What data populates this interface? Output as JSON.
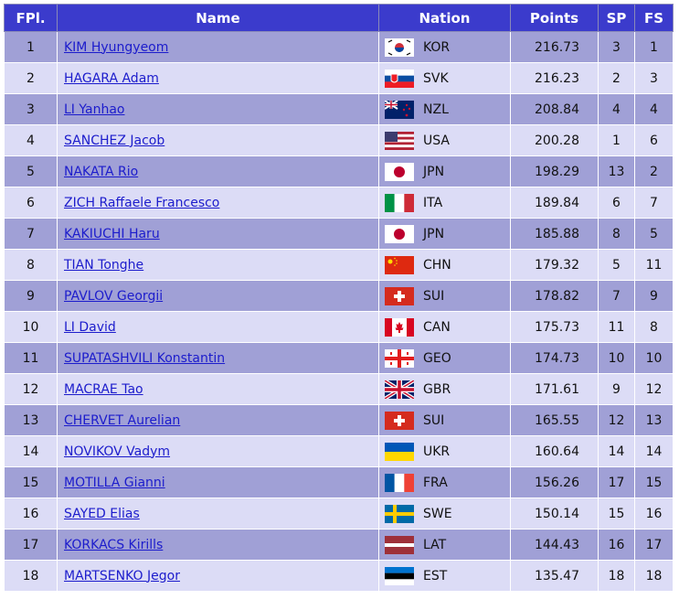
{
  "table": {
    "header": [
      "FPl.",
      "Name",
      "Nation",
      "Points",
      "SP",
      "FS"
    ],
    "rows": [
      [
        1,
        "KIM Hyungyeom",
        "KOR",
        216.73,
        3,
        1
      ],
      [
        2,
        "HAGARA Adam",
        "SVK",
        216.23,
        2,
        3
      ],
      [
        3,
        "LI Yanhao",
        "NZL",
        208.84,
        4,
        4
      ],
      [
        4,
        "SANCHEZ Jacob",
        "USA",
        200.28,
        1,
        6
      ],
      [
        5,
        "NAKATA Rio",
        "JPN",
        198.29,
        13,
        2
      ],
      [
        6,
        "ZICH Raffaele Francesco",
        "ITA",
        189.84,
        6,
        7
      ],
      [
        7,
        "KAKIUCHI Haru",
        "JPN",
        185.88,
        8,
        5
      ],
      [
        8,
        "TIAN Tonghe",
        "CHN",
        179.32,
        5,
        11
      ],
      [
        9,
        "PAVLOV Georgii",
        "SUI",
        178.82,
        7,
        9
      ],
      [
        10,
        "LI David",
        "CAN",
        175.73,
        11,
        8
      ],
      [
        11,
        "SUPATASHVILI Konstantin",
        "GEO",
        174.73,
        10,
        10
      ],
      [
        12,
        "MACRAE Tao",
        "GBR",
        171.61,
        9,
        12
      ],
      [
        13,
        "CHERVET Aurelian",
        "SUI",
        165.55,
        12,
        13
      ],
      [
        14,
        "NOVIKOV Vadym",
        "UKR",
        160.64,
        14,
        14
      ],
      [
        15,
        "MOTILLA Gianni",
        "FRA",
        156.26,
        17,
        15
      ],
      [
        16,
        "SAYED Elias",
        "SWE",
        150.14,
        15,
        16
      ],
      [
        17,
        "KORKACS Kirills",
        "LAT",
        144.43,
        16,
        17
      ],
      [
        18,
        "MARTSENKO Jegor",
        "EST",
        135.47,
        18,
        18
      ]
    ]
  }
}
